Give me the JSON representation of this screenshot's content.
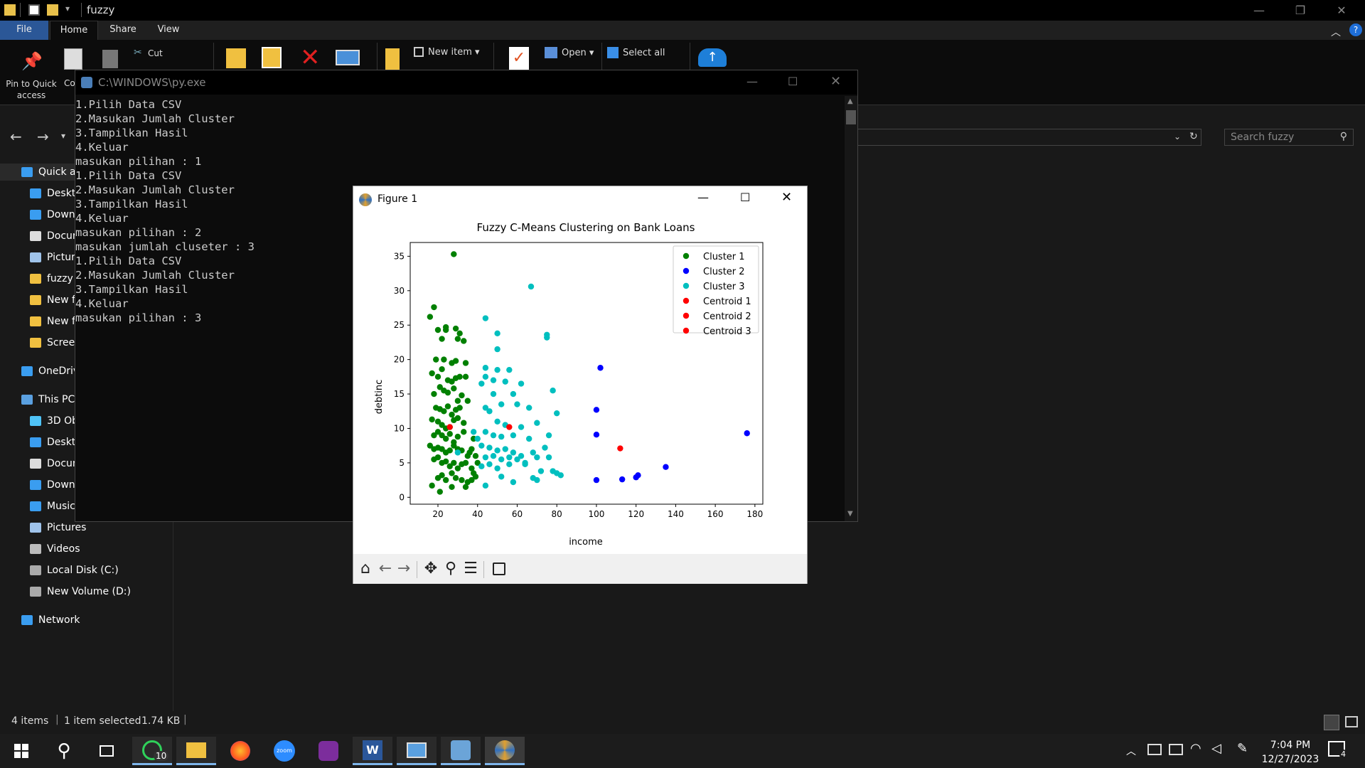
{
  "explorer": {
    "title": "fuzzy",
    "tabs": [
      "File",
      "Home",
      "Share",
      "View"
    ],
    "ribbon": {
      "pin_label": "Pin to Quick access",
      "copy_label": "Co",
      "cut_label": "Cut",
      "new_item_label": "New item",
      "open_label": "Open",
      "select_all_label": "Select all"
    },
    "search_placeholder": "Search fuzzy",
    "sidebar": [
      {
        "label": "Quick a",
        "icon": "star-icon",
        "indent": 0
      },
      {
        "label": "Deskto",
        "icon": "desktop-icon",
        "indent": 1
      },
      {
        "label": "Down",
        "icon": "download-icon",
        "indent": 1
      },
      {
        "label": "Docur",
        "icon": "document-icon",
        "indent": 1
      },
      {
        "label": "Pictur",
        "icon": "picture-icon",
        "indent": 1
      },
      {
        "label": "fuzzy",
        "icon": "folder-icon",
        "indent": 1
      },
      {
        "label": "New f",
        "icon": "folder-icon",
        "indent": 1
      },
      {
        "label": "New f",
        "icon": "folder-icon",
        "indent": 1
      },
      {
        "label": "Screer",
        "icon": "folder-icon",
        "indent": 1
      },
      {
        "label": "OneDriv",
        "icon": "cloud-icon",
        "indent": 0
      },
      {
        "label": "This PC",
        "icon": "pc-icon",
        "indent": 0
      },
      {
        "label": "3D Ob",
        "icon": "cube-icon",
        "indent": 1
      },
      {
        "label": "Deskto",
        "icon": "desktop-icon",
        "indent": 1
      },
      {
        "label": "Docun",
        "icon": "document-icon",
        "indent": 1
      },
      {
        "label": "Down",
        "icon": "download-icon",
        "indent": 1
      },
      {
        "label": "Music",
        "icon": "music-icon",
        "indent": 1
      },
      {
        "label": "Pictures",
        "icon": "picture-icon",
        "indent": 1
      },
      {
        "label": "Videos",
        "icon": "video-icon",
        "indent": 1
      },
      {
        "label": "Local Disk (C:)",
        "icon": "disk-icon",
        "indent": 1
      },
      {
        "label": "New Volume (D:)",
        "icon": "disk-icon",
        "indent": 1
      },
      {
        "label": "Network",
        "icon": "network-icon",
        "indent": 0
      }
    ],
    "status": {
      "items": "4 items",
      "selected": "1 item selected",
      "size": "1.74 KB"
    }
  },
  "console": {
    "title": "C:\\WINDOWS\\py.exe",
    "lines": [
      "1.Pilih Data CSV",
      "2.Masukan Jumlah Cluster",
      "3.Tampilkan Hasil",
      "4.Keluar",
      "masukan pilihan : 1",
      "1.Pilih Data CSV",
      "2.Masukan Jumlah Cluster",
      "3.Tampilkan Hasil",
      "4.Keluar",
      "masukan pilihan : 2",
      "masukan jumlah cluseter : 3",
      "1.Pilih Data CSV",
      "2.Masukan Jumlah Cluster",
      "3.Tampilkan Hasil",
      "4.Keluar",
      "masukan pilihan : 3"
    ]
  },
  "figure": {
    "window_title": "Figure 1"
  },
  "chart_data": {
    "type": "scatter",
    "title": "Fuzzy C-Means Clustering on Bank Loans",
    "xlabel": "income",
    "ylabel": "debtinc",
    "xlim": [
      6,
      184
    ],
    "ylim": [
      -1,
      37
    ],
    "xticks": [
      20,
      40,
      60,
      80,
      100,
      120,
      140,
      160,
      180
    ],
    "yticks": [
      0,
      5,
      10,
      15,
      20,
      25,
      30,
      35
    ],
    "legend_position": "top-right",
    "series": [
      {
        "name": "Cluster 1",
        "color": "#008000",
        "points": [
          [
            28,
            35.3
          ],
          [
            16,
            26.2
          ],
          [
            18,
            27.6
          ],
          [
            20,
            24.3
          ],
          [
            22,
            23
          ],
          [
            24,
            24.3
          ],
          [
            24,
            24.7
          ],
          [
            29,
            24.5
          ],
          [
            30,
            23
          ],
          [
            31,
            23.8
          ],
          [
            33,
            22.7
          ],
          [
            19,
            20
          ],
          [
            23,
            20
          ],
          [
            27,
            19.5
          ],
          [
            29,
            19.8
          ],
          [
            34,
            19.5
          ],
          [
            17,
            18
          ],
          [
            20,
            17.5
          ],
          [
            22,
            18.6
          ],
          [
            25,
            17
          ],
          [
            27,
            16.8
          ],
          [
            29,
            17.3
          ],
          [
            31,
            17.5
          ],
          [
            34,
            17.5
          ],
          [
            18,
            15
          ],
          [
            21,
            16
          ],
          [
            23,
            15.5
          ],
          [
            25,
            15.2
          ],
          [
            28,
            15.8
          ],
          [
            30,
            14
          ],
          [
            32,
            14.8
          ],
          [
            19,
            13
          ],
          [
            21,
            12.8
          ],
          [
            23,
            12.5
          ],
          [
            25,
            13.2
          ],
          [
            27,
            12
          ],
          [
            29,
            12.7
          ],
          [
            31,
            13
          ],
          [
            35,
            14
          ],
          [
            17,
            11.3
          ],
          [
            20,
            11
          ],
          [
            22,
            10.5
          ],
          [
            24,
            10
          ],
          [
            26,
            10.2
          ],
          [
            28,
            11.2
          ],
          [
            30,
            11.5
          ],
          [
            33,
            10.8
          ],
          [
            18,
            9
          ],
          [
            20,
            9.5
          ],
          [
            22,
            9
          ],
          [
            24,
            8.5
          ],
          [
            26,
            9.2
          ],
          [
            28,
            8
          ],
          [
            30,
            8.8
          ],
          [
            33,
            9.5
          ],
          [
            16,
            7.5
          ],
          [
            18,
            7
          ],
          [
            20,
            7.2
          ],
          [
            22,
            7
          ],
          [
            24,
            6.5
          ],
          [
            26,
            6.8
          ],
          [
            28,
            7.5
          ],
          [
            30,
            7
          ],
          [
            32,
            6.8
          ],
          [
            35,
            6
          ],
          [
            37,
            7
          ],
          [
            18,
            5.5
          ],
          [
            20,
            5.8
          ],
          [
            22,
            5
          ],
          [
            24,
            5.2
          ],
          [
            26,
            4.5
          ],
          [
            28,
            5
          ],
          [
            30,
            4.2
          ],
          [
            32,
            4.8
          ],
          [
            34,
            5
          ],
          [
            37,
            4.2
          ],
          [
            20,
            2.8
          ],
          [
            22,
            3.2
          ],
          [
            24,
            2.5
          ],
          [
            27,
            3.5
          ],
          [
            29,
            2.8
          ],
          [
            32,
            2.5
          ],
          [
            35,
            2.2
          ],
          [
            38,
            3.5
          ],
          [
            17,
            1.7
          ],
          [
            21,
            0.8
          ],
          [
            27,
            1.5
          ],
          [
            34,
            1.5
          ],
          [
            37,
            2.5
          ],
          [
            36,
            6.5
          ],
          [
            38,
            8.5
          ],
          [
            39,
            6
          ],
          [
            40,
            5
          ],
          [
            39,
            3
          ]
        ]
      },
      {
        "name": "Cluster 2",
        "color": "#0000ff",
        "points": [
          [
            102,
            18.8
          ],
          [
            100,
            12.7
          ],
          [
            100,
            9.1
          ],
          [
            100,
            2.5
          ],
          [
            113,
            2.6
          ],
          [
            120,
            2.9
          ],
          [
            121,
            3.2
          ],
          [
            135,
            4.4
          ],
          [
            176,
            9.3
          ]
        ]
      },
      {
        "name": "Cluster 3",
        "color": "#00bfbf",
        "points": [
          [
            67,
            30.6
          ],
          [
            44,
            26
          ],
          [
            75,
            23.2
          ],
          [
            75,
            23.6
          ],
          [
            50,
            23.8
          ],
          [
            50,
            21.5
          ],
          [
            44,
            18.8
          ],
          [
            50,
            18.5
          ],
          [
            56,
            18.5
          ],
          [
            44,
            17.5
          ],
          [
            48,
            17
          ],
          [
            54,
            16.8
          ],
          [
            62,
            16.5
          ],
          [
            42,
            16.5
          ],
          [
            78,
            15.5
          ],
          [
            48,
            15
          ],
          [
            58,
            15
          ],
          [
            60,
            13.5
          ],
          [
            66,
            13
          ],
          [
            80,
            12.2
          ],
          [
            44,
            13
          ],
          [
            52,
            13.5
          ],
          [
            46,
            12.5
          ],
          [
            50,
            11
          ],
          [
            54,
            10.5
          ],
          [
            62,
            10.2
          ],
          [
            70,
            10.8
          ],
          [
            44,
            9.5
          ],
          [
            40,
            8.5
          ],
          [
            48,
            9
          ],
          [
            52,
            8.8
          ],
          [
            58,
            9
          ],
          [
            66,
            8.5
          ],
          [
            76,
            9
          ],
          [
            42,
            7.5
          ],
          [
            46,
            7.2
          ],
          [
            50,
            6.8
          ],
          [
            54,
            7
          ],
          [
            58,
            6.5
          ],
          [
            62,
            6
          ],
          [
            68,
            6.5
          ],
          [
            74,
            7.2
          ],
          [
            44,
            5.8
          ],
          [
            48,
            6
          ],
          [
            52,
            5.5
          ],
          [
            56,
            5.8
          ],
          [
            60,
            5.5
          ],
          [
            64,
            5
          ],
          [
            70,
            5.8
          ],
          [
            76,
            5.8
          ],
          [
            42,
            4.5
          ],
          [
            46,
            4.8
          ],
          [
            50,
            4.2
          ],
          [
            56,
            4.8
          ],
          [
            64,
            4.8
          ],
          [
            72,
            3.8
          ],
          [
            78,
            3.8
          ],
          [
            80,
            3.5
          ],
          [
            82,
            3.2
          ],
          [
            52,
            3
          ],
          [
            68,
            2.8
          ],
          [
            44,
            1.7
          ],
          [
            58,
            2.2
          ],
          [
            70,
            2.5
          ],
          [
            30,
            6.5
          ],
          [
            38,
            9.5
          ]
        ]
      },
      {
        "name": "Centroid 1",
        "color": "#ff0000",
        "points": [
          [
            26,
            10.2
          ]
        ]
      },
      {
        "name": "Centroid 2",
        "color": "#ff0000",
        "points": [
          [
            112,
            7.1
          ]
        ]
      },
      {
        "name": "Centroid 3",
        "color": "#ff0000",
        "points": [
          [
            56,
            10.2
          ]
        ]
      }
    ]
  },
  "taskbar": {
    "whatsapp_badge": "10",
    "time": "7:04 PM",
    "date": "12/27/2023",
    "notification_count": "4"
  }
}
